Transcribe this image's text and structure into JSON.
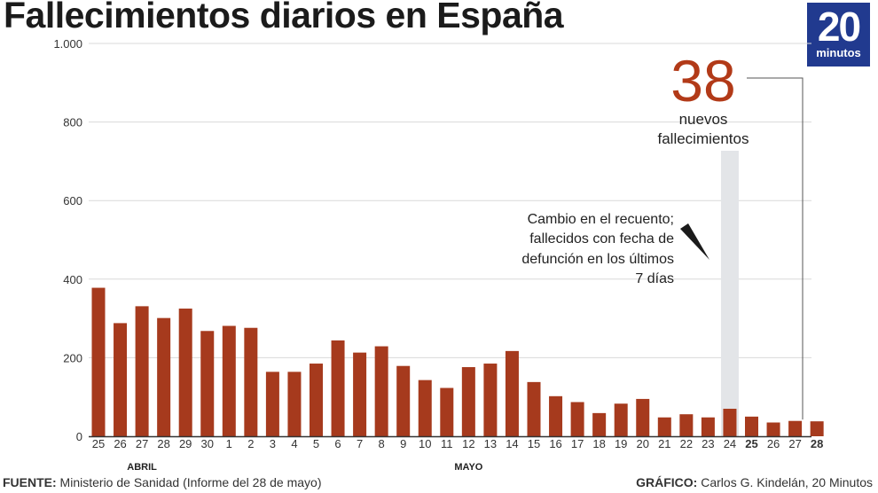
{
  "title": "Fallecimientos diarios en España",
  "logo": {
    "number": "20",
    "word": "minutos",
    "color": "#213a8f"
  },
  "colors": {
    "bar": "#a63a1d",
    "callout": "#b23a18",
    "grid": "#d9d9d9",
    "highlight": "#e3e5e8"
  },
  "chart_data": {
    "type": "bar",
    "title": "Fallecimientos diarios en España",
    "ylim": [
      0,
      1000
    ],
    "yticks": [
      0,
      200,
      400,
      600,
      800,
      1000
    ],
    "ytick_labels": [
      "0",
      "200",
      "400",
      "600",
      "800",
      "1.000"
    ],
    "grid": true,
    "categories": [
      "25",
      "26",
      "27",
      "28",
      "29",
      "30",
      "1",
      "2",
      "3",
      "4",
      "5",
      "6",
      "7",
      "8",
      "9",
      "10",
      "11",
      "12",
      "13",
      "14",
      "15",
      "16",
      "17",
      "18",
      "19",
      "20",
      "21",
      "22",
      "23",
      "24",
      "25",
      "26",
      "27",
      "28"
    ],
    "values": [
      378,
      288,
      331,
      301,
      325,
      268,
      281,
      276,
      164,
      164,
      185,
      244,
      213,
      229,
      179,
      143,
      123,
      176,
      185,
      217,
      138,
      102,
      87,
      59,
      83,
      95,
      48,
      56,
      48,
      70,
      50,
      35,
      39,
      38
    ],
    "bold_categories": [
      30,
      33
    ],
    "highlight_category": 29,
    "month_labels": [
      {
        "label": "ABRIL",
        "category_index": 2
      },
      {
        "label": "MAYO",
        "category_index": 17
      }
    ],
    "callout": {
      "value": "38",
      "line1": "nuevos",
      "line2": "fallecimientos",
      "category_index": 33
    },
    "annotation": [
      "Cambio en el recuento;",
      "fallecidos con fecha de",
      "defunción en los últimos",
      "7 días"
    ]
  },
  "footer": {
    "source_label": "FUENTE:",
    "source_text": " Ministerio de Sanidad (Informe del 28 de mayo)",
    "credit_label": "GRÁFICO:",
    "credit_text": " Carlos G. Kindelán, 20 Minutos"
  }
}
